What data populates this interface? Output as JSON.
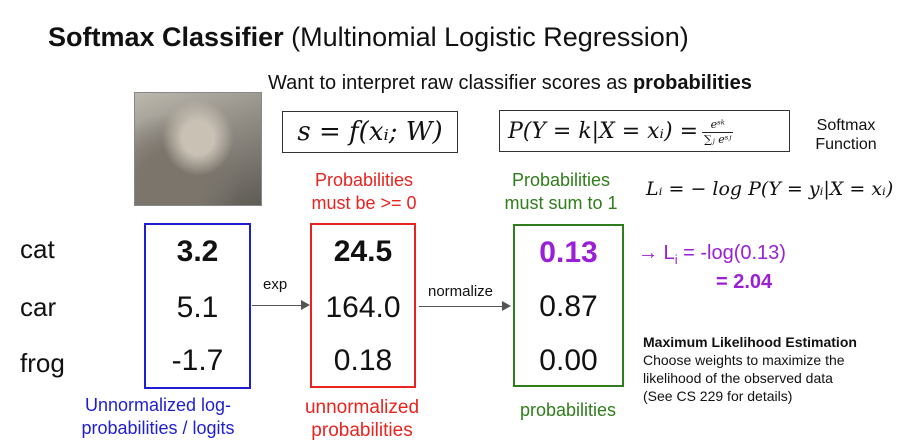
{
  "title": {
    "bold": "Softmax Classifier",
    "rest": "(Multinomial Logistic Regression)"
  },
  "subtitle": {
    "text": "Want to interpret raw classifier scores as ",
    "bold": "probabilities"
  },
  "equations": {
    "score": "s = f(xᵢ; W)",
    "softmax_lhs": "P(Y = k|X = xᵢ) =",
    "softmax_num": "eˢᵏ",
    "softmax_den": "∑ⱼ eˢʲ",
    "softmax_label": "Softmax Function",
    "loss": "Lᵢ = − log P(Y = yᵢ|X = xᵢ)"
  },
  "headers": {
    "red": "Probabilities must be >= 0",
    "green": "Probabilities must sum to 1"
  },
  "classes": [
    "cat",
    "car",
    "frog"
  ],
  "scores": [
    "3.2",
    "5.1",
    "-1.7"
  ],
  "exp_values": [
    "24.5",
    "164.0",
    "0.18"
  ],
  "probabilities": [
    "0.13",
    "0.87",
    "0.00"
  ],
  "arrows": {
    "exp": "exp",
    "normalize": "normalize"
  },
  "loss_result": {
    "line1_prefix": "→ L",
    "line1_sub": "i",
    "line1_rest": " = -log(0.13)",
    "line2": "= 2.04"
  },
  "bottom_labels": {
    "blue": "Unnormalized log-probabilities / logits",
    "red": "unnormalized probabilities",
    "green": "probabilities"
  },
  "mle": {
    "heading": "Maximum Likelihood Estimation",
    "line1": "Choose weights to maximize the",
    "line2": "likelihood of the observed data",
    "line3": "(See CS 229 for details)"
  },
  "colors": {
    "blue": "#1f1fd1",
    "red": "#e8241f",
    "green": "#2f7d1c",
    "purple": "#9b1fd6"
  },
  "image_subject": "cat-photo"
}
